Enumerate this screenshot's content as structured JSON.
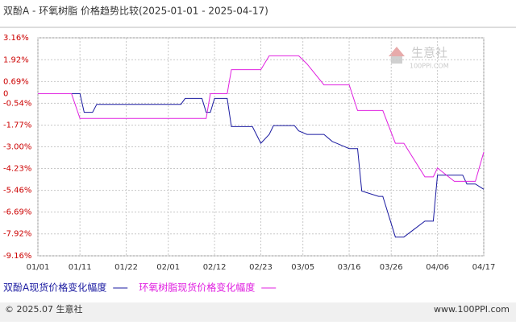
{
  "chart_data": {
    "type": "line",
    "title": "双酚A - 环氧树脂 价格趋势比较(2025-01-01 - 2025-04-17)",
    "x": [
      "01/01",
      "01/09",
      "01/11",
      "01/12",
      "01/14",
      "01/15",
      "02/04",
      "02/05",
      "02/09",
      "02/10",
      "02/11",
      "02/12",
      "02/15",
      "02/16",
      "02/21",
      "02/23",
      "02/25",
      "02/26",
      "03/03",
      "03/04",
      "03/06",
      "03/10",
      "03/12",
      "03/13",
      "03/16",
      "03/18",
      "03/19",
      "03/23",
      "03/24",
      "03/27",
      "03/29",
      "04/03",
      "04/05",
      "04/06",
      "04/10",
      "04/12",
      "04/13",
      "04/15",
      "04/17"
    ],
    "series": [
      {
        "name": "双酚A现货价格变化幅度",
        "color": "#1a1aa0",
        "values": [
          0,
          0,
          0,
          -1.05,
          -1.05,
          -0.6,
          -0.6,
          -0.27,
          -0.27,
          -1.05,
          -1.05,
          -0.27,
          -0.27,
          -1.86,
          -1.86,
          -2.8,
          -2.3,
          -1.8,
          -1.8,
          -2.1,
          -2.3,
          -2.3,
          -2.7,
          -2.8,
          -3.1,
          -3.1,
          -5.5,
          -5.8,
          -5.8,
          -8.1,
          -8.1,
          -7.2,
          -7.2,
          -4.6,
          -4.6,
          -4.6,
          -5.1,
          -5.1,
          -5.4
        ]
      },
      {
        "name": "环氧树脂现货价格变化幅度",
        "color": "#e020e0",
        "values": [
          0,
          0,
          -1.4,
          -1.4,
          -1.4,
          -1.4,
          -1.4,
          -1.4,
          -1.4,
          -1.4,
          0,
          0,
          0,
          1.36,
          1.36,
          1.36,
          2.14,
          2.14,
          2.14,
          2.14,
          1.68,
          0.5,
          0.5,
          0.5,
          0.5,
          -0.95,
          -0.95,
          -0.95,
          -0.95,
          -2.8,
          -2.8,
          -4.7,
          -4.7,
          -4.2,
          -4.95,
          -4.95,
          -4.95,
          -4.95,
          -3.3
        ]
      }
    ],
    "xlim": [
      "01/01",
      "04/17"
    ],
    "xticks": [
      "01/01",
      "01/11",
      "01/22",
      "02/01",
      "02/12",
      "02/23",
      "03/05",
      "03/16",
      "03/26",
      "04/06",
      "04/17"
    ],
    "ylim": [
      -9.16,
      3.16
    ],
    "yticks": [
      {
        "value": 3.16,
        "label": "3.16%"
      },
      {
        "value": 1.92,
        "label": "1.92%"
      },
      {
        "value": 0.69,
        "label": "0.69%"
      },
      0,
      {
        "value": -0.54,
        "label": "-0.54%"
      },
      {
        "value": -1.77,
        "label": "-1.77%"
      },
      {
        "value": -3.0,
        "label": "-3.00%"
      },
      {
        "value": -4.23,
        "label": "-4.23%"
      },
      {
        "value": -5.46,
        "label": "-5.46%"
      },
      {
        "value": -6.69,
        "label": "-6.69%"
      },
      {
        "value": -7.92,
        "label": "-7.92%"
      },
      {
        "value": -9.16,
        "label": "-9.16%"
      }
    ],
    "grid": true,
    "watermark": {
      "name": "生意社",
      "site": "100PPI.COM"
    },
    "footer": {
      "left": "© 2025.07 生意社",
      "right": "www.100PPI.com"
    }
  }
}
